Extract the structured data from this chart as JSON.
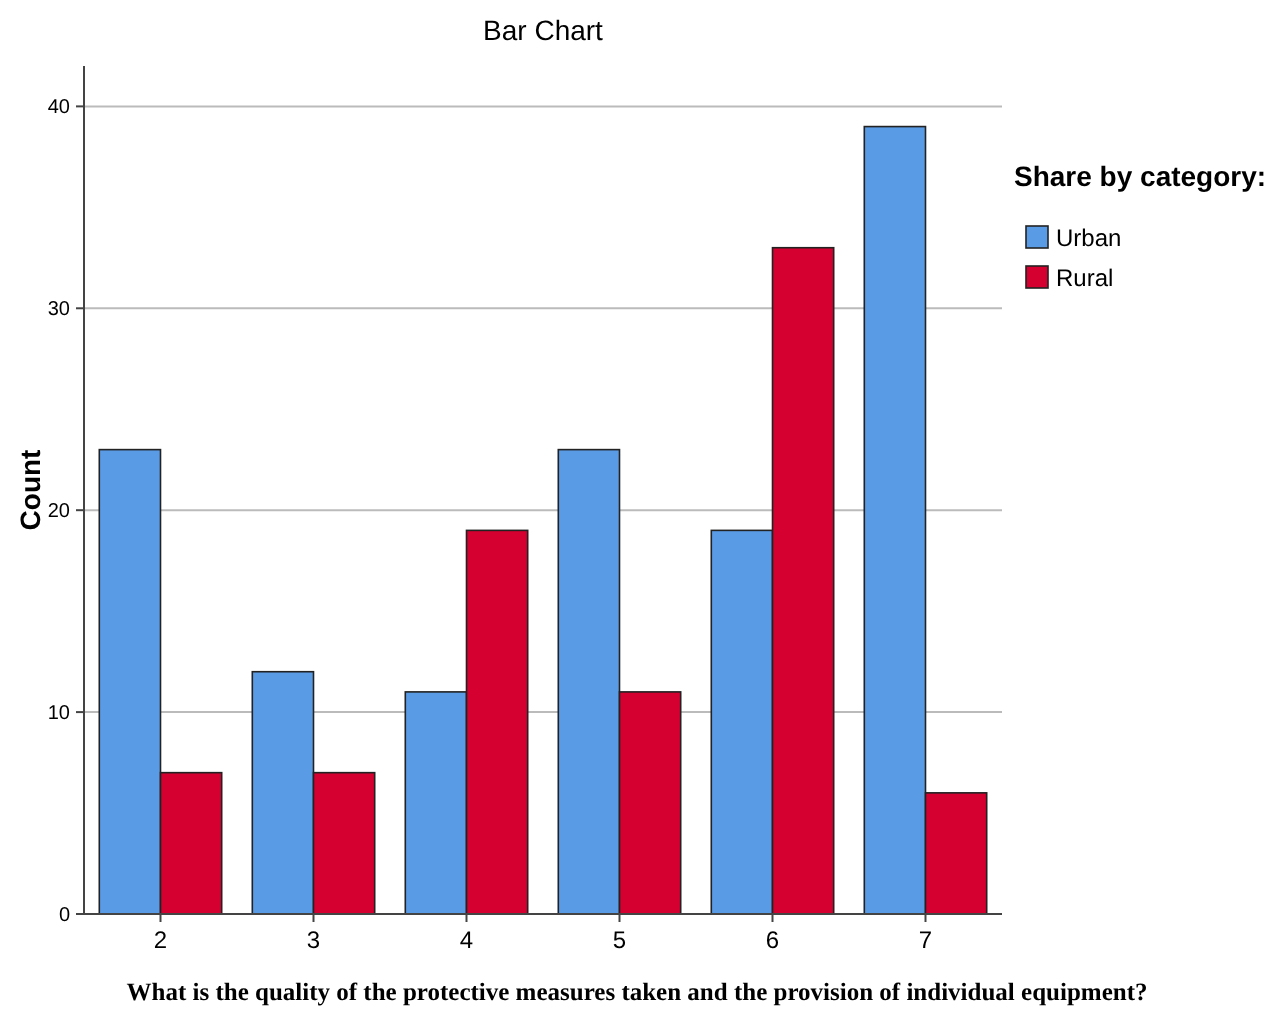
{
  "chart_data": {
    "type": "bar",
    "title": "Bar Chart",
    "xlabel": "What is the quality of the protective measures taken and the provision of individual equipment?",
    "ylabel": "Count",
    "legend_title": "Share by category:",
    "categories": [
      "2",
      "3",
      "4",
      "5",
      "6",
      "7"
    ],
    "series": [
      {
        "name": "Urban",
        "color": "#5a9be6",
        "values": [
          23,
          12,
          11,
          23,
          19,
          39
        ]
      },
      {
        "name": "Rural",
        "color": "#d5002f",
        "values": [
          7,
          7,
          19,
          11,
          33,
          6
        ]
      }
    ],
    "ylim": [
      0,
      42
    ],
    "yticks": [
      0,
      10,
      20,
      30,
      40
    ],
    "grid": "y",
    "legend": "right"
  }
}
